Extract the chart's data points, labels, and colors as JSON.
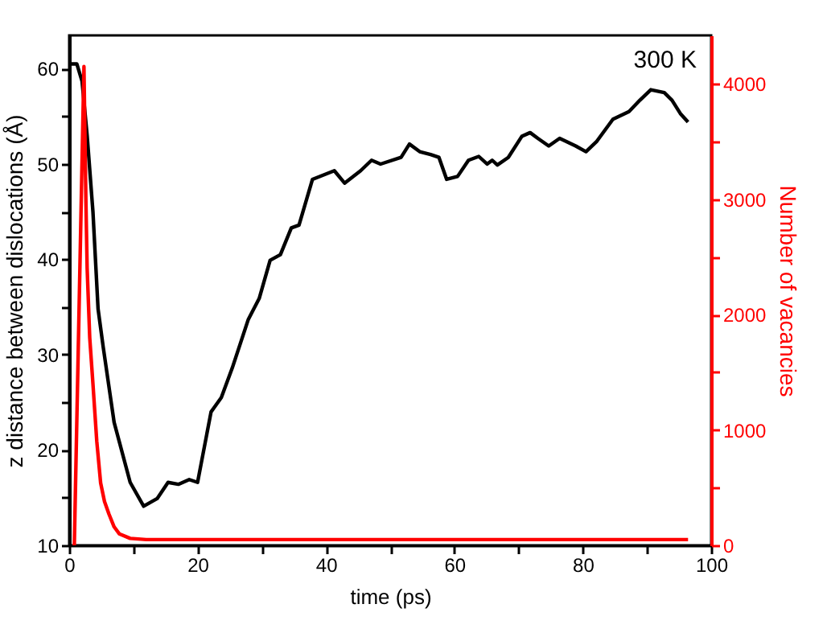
{
  "chart_data": {
    "type": "line",
    "xlabel": "time (ps)",
    "ylabel": "z distance between dislocations (Å)",
    "y2label": "Number of vacancies",
    "annotations": [
      "300 K"
    ],
    "xlim": [
      0,
      100
    ],
    "xticks": [
      0,
      {
        "value": 10,
        "label": null
      },
      20,
      {
        "value": 30,
        "label": null
      },
      40,
      {
        "value": 50,
        "label": null
      },
      60,
      {
        "value": 70,
        "label": null
      },
      80,
      {
        "value": 90,
        "label": null
      },
      100
    ],
    "ylim": [
      10,
      63.5
    ],
    "yticks": [
      10,
      {
        "value": 15,
        "label": null
      },
      20,
      {
        "value": 25,
        "label": null
      },
      30,
      {
        "value": 35,
        "label": null
      },
      40,
      {
        "value": 45,
        "label": null
      },
      50,
      {
        "value": 55,
        "label": null
      },
      60
    ],
    "y2lim": [
      0,
      4420
    ],
    "y2ticks": [
      0,
      {
        "value": 500,
        "label": null
      },
      1000,
      {
        "value": 1500,
        "label": null
      },
      2000,
      {
        "value": 2500,
        "label": null
      },
      3000,
      {
        "value": 3500,
        "label": null
      },
      4000
    ],
    "series": [
      {
        "color": "#000000",
        "x": [
          0.3,
          1.2,
          2.0,
          2.8,
          3.7,
          4.5,
          5.3,
          7.0,
          9.5,
          11.6,
          13.7,
          15.4,
          17.0,
          18.7,
          20.0,
          22.1,
          23.7,
          25.4,
          27.9,
          29.6,
          31.3,
          32.9,
          34.6,
          35.8,
          37.9,
          41.3,
          42.9,
          45.4,
          47.1,
          48.5,
          51.7,
          53.0,
          54.6,
          56.3,
          57.6,
          58.8,
          60.5,
          62.2,
          63.8,
          65.1,
          65.9,
          66.7,
          68.4,
          70.5,
          71.8,
          73.0,
          74.7,
          76.4,
          78.9,
          80.5,
          82.2,
          84.7,
          87.2,
          88.9,
          90.6,
          92.7,
          93.9,
          95.2,
          96.4
        ],
        "values": [
          60.5,
          60.5,
          58.7,
          53.0,
          45.0,
          34.8,
          30.8,
          22.9,
          16.6,
          14.1,
          14.9,
          16.6,
          16.4,
          16.9,
          16.6,
          24.0,
          25.5,
          28.6,
          33.7,
          35.9,
          39.9,
          40.5,
          43.3,
          43.6,
          48.4,
          49.3,
          48.0,
          49.3,
          50.4,
          50.0,
          50.7,
          52.1,
          51.3,
          51.0,
          50.7,
          48.4,
          48.7,
          50.4,
          50.8,
          50.0,
          50.4,
          49.9,
          50.7,
          52.9,
          53.3,
          52.7,
          51.9,
          52.7,
          51.9,
          51.3,
          52.4,
          54.7,
          55.5,
          56.7,
          57.8,
          57.5,
          56.7,
          55.3,
          54.4
        ]
      },
      {
        "color": "#ff0000",
        "axis": "y2",
        "x": [
          0.8,
          2.3,
          2.6,
          2.8,
          3.2,
          3.7,
          4.3,
          4.9,
          5.5,
          6.2,
          7.0,
          7.8,
          9.5,
          12.0,
          96.4
        ],
        "values": [
          0,
          4150,
          3000,
          2400,
          1800,
          1400,
          900,
          540,
          380,
          270,
          160,
          100,
          60,
          50,
          50
        ]
      }
    ]
  }
}
